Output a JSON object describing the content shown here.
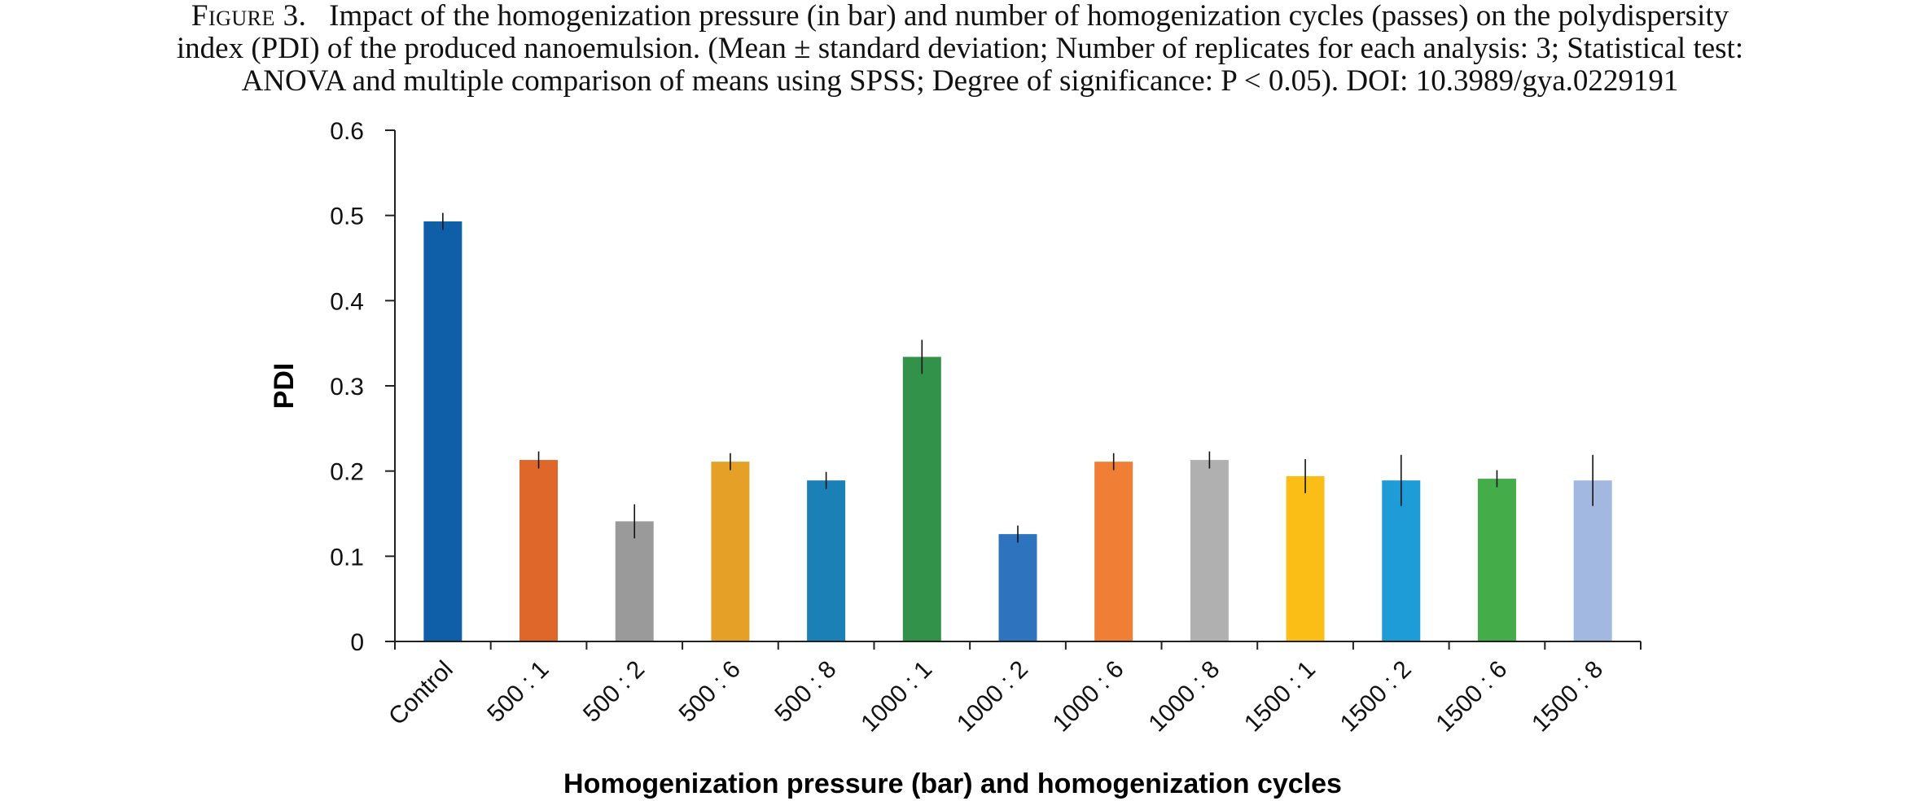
{
  "caption": {
    "label": "Figure 3.",
    "line1": "Impact of the homogenization pressure (in bar) and number of homogenization cycles (passes) on the polydispersity",
    "line2": "index (PDI) of the produced nanoemulsion. (Mean ± standard deviation; Number of replicates for each analysis: 3; Statistical test:",
    "line3": "ANOVA and multiple comparison of means using SPSS; Degree of significance: P < 0.05). DOI: 10.3989/gya.0229191"
  },
  "chart_data": {
    "type": "bar",
    "xlabel": "Homogenization pressure  (bar) and homogenization cycles",
    "ylabel": "PDI",
    "ylim": [
      0,
      0.6
    ],
    "yticks": [
      "0",
      "0.1",
      "0.2",
      "0.3",
      "0.4",
      "0.5",
      "0.6"
    ],
    "grid": false,
    "categories": [
      "Control",
      "500 : 1",
      "500 : 2",
      "500 : 6",
      "500 : 8",
      "1000 : 1",
      "1000 : 2",
      "1000 : 6",
      "1000 : 8",
      "1500 : 1",
      "1500 : 2",
      "1500 : 6",
      "1500 : 8"
    ],
    "values": [
      0.493,
      0.213,
      0.141,
      0.211,
      0.189,
      0.334,
      0.126,
      0.211,
      0.213,
      0.194,
      0.189,
      0.191,
      0.189
    ],
    "errors": [
      0.01,
      0.01,
      0.02,
      0.01,
      0.01,
      0.02,
      0.01,
      0.01,
      0.01,
      0.02,
      0.03,
      0.01,
      0.03
    ],
    "colors": [
      "#0f5ea8",
      "#e0672a",
      "#9a9a9a",
      "#e5a127",
      "#1a80b5",
      "#33924a",
      "#2e73bd",
      "#f07e35",
      "#b0b0b0",
      "#fbbe16",
      "#1e9cd8",
      "#45ac4a",
      "#a3b8e0"
    ]
  }
}
